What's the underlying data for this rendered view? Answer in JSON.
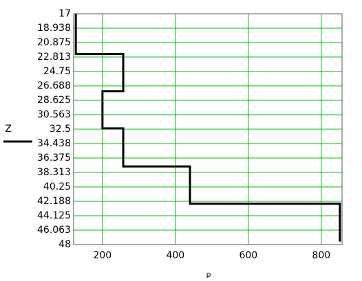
{
  "chart_data": {
    "type": "line",
    "x_label": "ρ",
    "y_label": "Z",
    "x": [
      127,
      127,
      257,
      257,
      200,
      200,
      257,
      257,
      440,
      440,
      851,
      851
    ],
    "series": [
      {
        "color": "#000000",
        "values": [
          17,
          22.4,
          22.4,
          27.4,
          27.4,
          32.4,
          32.4,
          37.5,
          37.5,
          42.5,
          42.5,
          47.6
        ]
      }
    ],
    "xlim": [
      121,
      857
    ],
    "xticks": [
      200,
      400,
      600,
      800
    ],
    "ylim": [
      48,
      17
    ],
    "yticks": [
      17,
      18.938,
      20.875,
      22.813,
      24.75,
      26.688,
      28.625,
      30.563,
      32.5,
      34.438,
      36.375,
      38.313,
      40.25,
      42.188,
      44.125,
      46.063,
      48
    ],
    "grid": true,
    "grid_color": "#00c000"
  }
}
